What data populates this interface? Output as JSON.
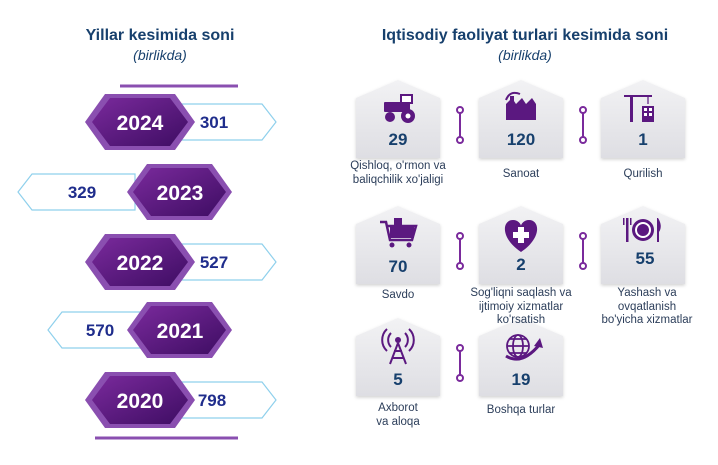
{
  "left_panel": {
    "title": "Yillar kesimida soni",
    "subtitle": "(birlikda)",
    "years": [
      {
        "year": "2024",
        "value": "301"
      },
      {
        "year": "2023",
        "value": "329"
      },
      {
        "year": "2022",
        "value": "527"
      },
      {
        "year": "2021",
        "value": "570"
      },
      {
        "year": "2020",
        "value": "798"
      }
    ]
  },
  "right_panel": {
    "title": "Iqtisodiy faoliyat turlari kesimida soni",
    "subtitle": "(birlikda)",
    "activities": [
      {
        "icon": "tractor-icon",
        "value": "29",
        "label_lines": [
          "Qishloq, o'rmon va",
          "baliqchilik xo'jaligi"
        ]
      },
      {
        "icon": "factory-icon",
        "value": "120",
        "label_lines": [
          "Sanoat"
        ]
      },
      {
        "icon": "crane-icon",
        "value": "1",
        "label_lines": [
          "Qurilish"
        ]
      },
      {
        "icon": "shopping-cart-icon",
        "value": "70",
        "label_lines": [
          "Savdo"
        ]
      },
      {
        "icon": "medical-heart-icon",
        "value": "2",
        "label_lines": [
          "Sog'liqni saqlash va",
          "ijtimoiy xizmatlar",
          "ko'rsatish"
        ]
      },
      {
        "icon": "plate-cutlery-icon",
        "value": "55",
        "label_lines": [
          "Yashash va",
          "ovqatlanish",
          "bo'yicha xizmatlar"
        ]
      },
      {
        "icon": "antenna-tower-icon",
        "value": "5",
        "label_lines": [
          "Axborot",
          "va aloqa"
        ]
      },
      {
        "icon": "globe-arrow-icon",
        "value": "19",
        "label_lines": [
          "Boshqa turlar"
        ]
      }
    ]
  },
  "colors": {
    "navy": "#17406d",
    "purple": "#5b1880",
    "purple_light": "#8a4fb0",
    "value_blue": "#1f2d8c",
    "arrow_border": "#8fd0ec",
    "house_gray": "#e9e9ec"
  }
}
